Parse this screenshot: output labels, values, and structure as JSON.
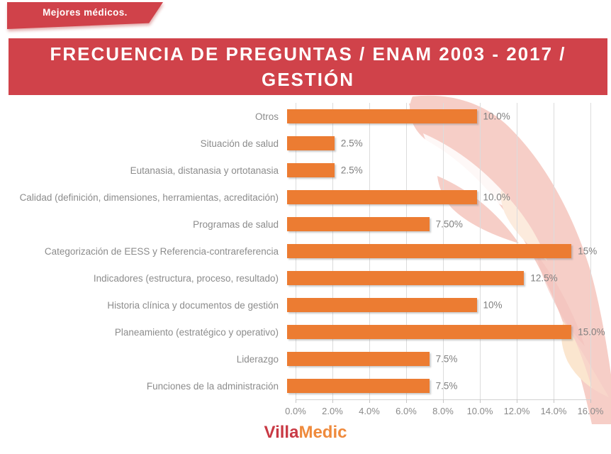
{
  "ribbon": {
    "label": "Mejores médicos."
  },
  "header": {
    "title_lines": [
      "FRECUENCIA DE PREGUNTAS / ENAM 2003 - 2017 /",
      "GESTIÓN"
    ],
    "banner_color": "#D0424A"
  },
  "chart_data": {
    "type": "bar",
    "orientation": "horizontal",
    "title": "FRECUENCIA DE PREGUNTAS / ENAM 2003 - 2017 / GESTIÓN",
    "categories": [
      "Otros",
      "Situación de salud",
      "Eutanasia, distanasia y ortotanasia",
      "Calidad (definición, dimensiones, herramientas, acreditación)",
      "Programas de salud",
      "Categorización de EESS y Referencia-contrareferencia",
      "Indicadores (estructura, proceso, resultado)",
      "Historia clínica y documentos de gestión",
      "Planeamiento (estratégico y operativo)",
      "Liderazgo",
      "Funciones de la administración"
    ],
    "values": [
      10.0,
      2.5,
      2.5,
      10.0,
      7.5,
      15,
      12.5,
      10,
      15.0,
      7.5,
      7.5
    ],
    "value_labels": [
      "10.0%",
      "2.5%",
      "2.5%",
      "10.0%",
      "7.50%",
      "15%",
      "12.5%",
      "10%",
      "15.0%",
      "7.5%",
      "7.5%"
    ],
    "xlim": [
      0,
      16
    ],
    "x_ticks": [
      "0.0%",
      "2.0%",
      "4.0%",
      "6.0%",
      "8.0%",
      "10.0%",
      "12.0%",
      "14.0%",
      "16.0%"
    ],
    "x_tick_values": [
      0,
      2,
      4,
      6,
      8,
      10,
      12,
      14,
      16
    ],
    "bar_color": "#EC7C32",
    "grid": true,
    "legend": false
  },
  "footer": {
    "brand_part1": "Villa",
    "brand_part2": "Medic"
  },
  "colors": {
    "banner_red": "#D0424A",
    "bar_orange": "#EC7C32",
    "label_gray": "#8C8C8C",
    "watermark_pink": "#F6CEC7",
    "watermark_cream": "#FBE6CF"
  }
}
